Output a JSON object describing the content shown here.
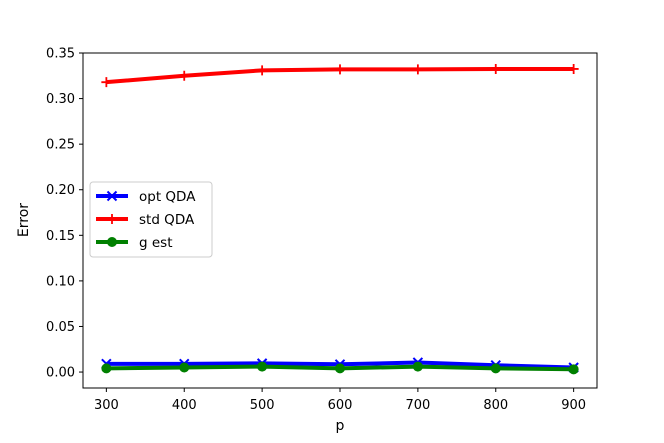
{
  "chart_data": {
    "type": "line",
    "title": "",
    "xlabel": "p",
    "ylabel": "Error",
    "xlim": [
      270,
      930
    ],
    "ylim": [
      -0.0175,
      0.35
    ],
    "x": [
      300,
      400,
      500,
      600,
      700,
      800,
      900
    ],
    "xticks": [
      "300",
      "400",
      "500",
      "600",
      "700",
      "800",
      "900"
    ],
    "yticks": [
      "0.00",
      "0.05",
      "0.10",
      "0.15",
      "0.20",
      "0.25",
      "0.30",
      "0.35"
    ],
    "grid": false,
    "legend_position": "center-left",
    "series": [
      {
        "name": "opt QDA",
        "color": "#0000ff",
        "marker": "x",
        "values": [
          0.009,
          0.009,
          0.0095,
          0.0085,
          0.0105,
          0.0075,
          0.005
        ]
      },
      {
        "name": "std QDA",
        "color": "#ff0000",
        "marker": "+",
        "values": [
          0.318,
          0.325,
          0.331,
          0.332,
          0.332,
          0.3325,
          0.3325
        ]
      },
      {
        "name": "g est",
        "color": "#008000",
        "marker": "o",
        "values": [
          0.004,
          0.005,
          0.006,
          0.004,
          0.006,
          0.004,
          0.003
        ]
      }
    ]
  }
}
